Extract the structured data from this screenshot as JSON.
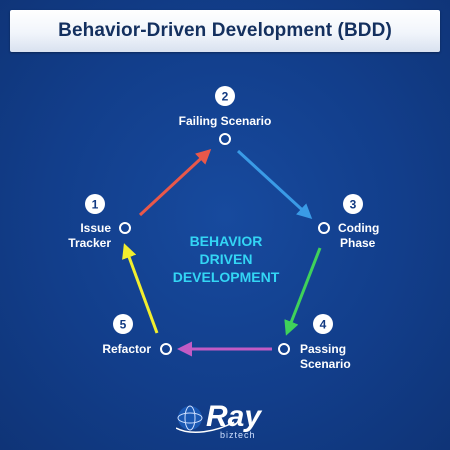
{
  "title": "Behavior-Driven Development (BDD)",
  "center_lines": [
    "BEHAVIOR",
    "DRIVEN",
    "DEVELOPMENT"
  ],
  "nodes": [
    {
      "number": "1",
      "lines": [
        "Issue",
        "Tracker"
      ]
    },
    {
      "number": "2",
      "lines": [
        "Failing Scenario"
      ]
    },
    {
      "number": "3",
      "lines": [
        "Coding",
        "Phase"
      ]
    },
    {
      "number": "4",
      "lines": [
        "Passing",
        "Scenario"
      ]
    },
    {
      "number": "5",
      "lines": [
        "Refactor"
      ]
    }
  ],
  "arrow_colors": {
    "issue_to_failing": "#e8584a",
    "failing_to_coding": "#3a9be6",
    "coding_to_passing": "#3fd25a",
    "passing_to_refactor": "#c25bc4",
    "refactor_to_issue": "#f2ee2e"
  },
  "logo": {
    "word": "Ray",
    "sub": "biztech"
  }
}
